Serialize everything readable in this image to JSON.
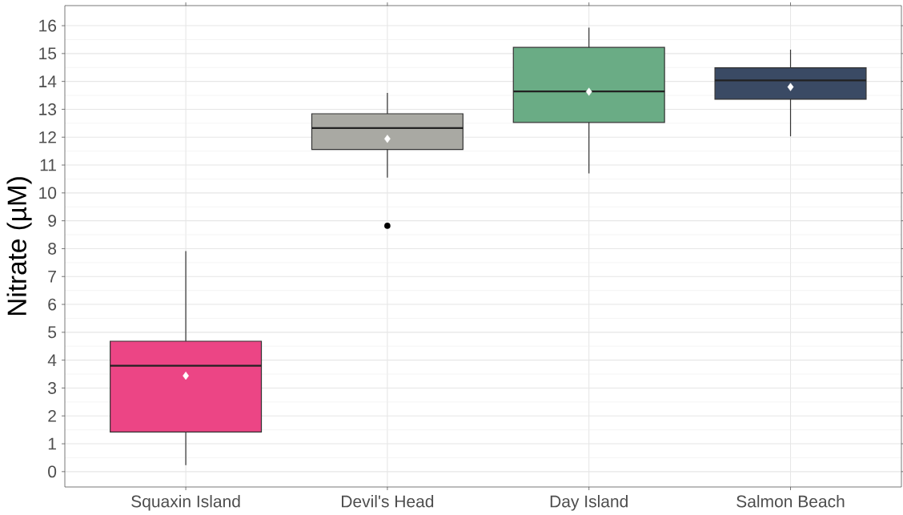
{
  "chart_data": {
    "type": "box",
    "categories": [
      "Squaxin Island",
      "Devil's Head",
      "Day Island",
      "Salmon Beach"
    ],
    "boxes": [
      {
        "low": 0.23,
        "q1": 1.42,
        "median": 3.8,
        "q3": 4.68,
        "high": 7.91,
        "mean": 3.44
      },
      {
        "low": 10.55,
        "q1": 11.56,
        "median": 12.33,
        "q3": 12.84,
        "high": 13.59,
        "mean": 11.94,
        "outliers": [
          8.82
        ]
      },
      {
        "low": 10.7,
        "q1": 12.53,
        "median": 13.64,
        "q3": 15.22,
        "high": 15.93,
        "mean": 13.63
      },
      {
        "low": 12.03,
        "q1": 13.36,
        "median": 14.04,
        "q3": 14.49,
        "high": 15.14,
        "mean": 13.8
      }
    ],
    "colors": [
      "#ec4585",
      "#a9a9a3",
      "#6aac85",
      "#3a4a64"
    ],
    "ylabel": "Nitrate (µM)",
    "ylim": [
      -0.55,
      16.72
    ],
    "yticks": [
      0,
      1,
      2,
      3,
      4,
      5,
      6,
      7,
      8,
      9,
      10,
      11,
      12,
      13,
      14,
      15,
      16
    ],
    "grid": true
  }
}
